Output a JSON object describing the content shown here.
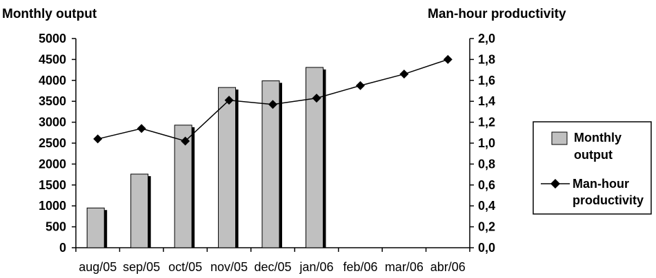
{
  "chart_data": {
    "type": "bar+line",
    "left_axis_title": "Monthly output",
    "right_axis_title": "Man-hour productivity",
    "categories": [
      "aug/05",
      "sep/05",
      "oct/05",
      "nov/05",
      "dec/05",
      "jan/06",
      "feb/06",
      "mar/06",
      "abr/06"
    ],
    "left_ylim": [
      0,
      5000
    ],
    "left_yticks": [
      "0",
      "500",
      "1000",
      "1500",
      "2000",
      "2500",
      "3000",
      "3500",
      "4000",
      "4500",
      "5000"
    ],
    "right_ylim": [
      0,
      2.0
    ],
    "right_yticks": [
      "0,0",
      "0,2",
      "0,4",
      "0,6",
      "0,8",
      "1,0",
      "1,2",
      "1,4",
      "1,6",
      "1,8",
      "2,0"
    ],
    "series": [
      {
        "name": "Monthly output",
        "type": "bar",
        "axis": "left",
        "color": "#c0c0c0",
        "values": [
          950,
          1760,
          2930,
          3830,
          3990,
          4310,
          null,
          null,
          null
        ]
      },
      {
        "name": "Man-hour productivity",
        "type": "line",
        "axis": "right",
        "color": "#000000",
        "values": [
          1.04,
          1.14,
          1.02,
          1.41,
          1.37,
          1.43,
          1.55,
          1.66,
          1.8
        ]
      }
    ],
    "legend": {
      "position": "right",
      "items": [
        {
          "lines": [
            "Monthly",
            "output"
          ]
        },
        {
          "lines": [
            "Man-hour",
            "productivity"
          ]
        }
      ]
    },
    "grid": false
  }
}
